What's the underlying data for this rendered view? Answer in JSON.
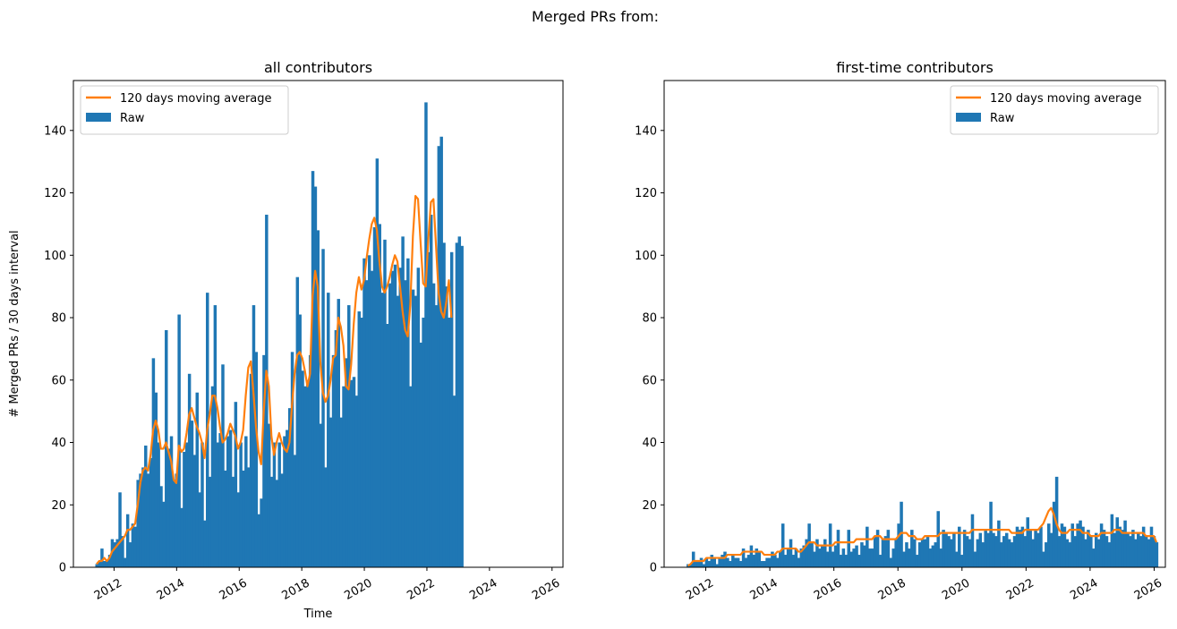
{
  "figure": {
    "title": "Merged PRs from:"
  },
  "colors": {
    "raw": "#1f77b4",
    "avg": "#ff7f0e"
  },
  "chart_data": [
    {
      "type": "bar",
      "title": "all contributors",
      "xlabel": "Time",
      "ylabel": "# Merged PRs / 30 days interval",
      "ylim": [
        0,
        156
      ],
      "xlim": [
        2010.7,
        2026.35
      ],
      "x_ticks": [
        2012,
        2014,
        2016,
        2018,
        2020,
        2022,
        2024,
        2026
      ],
      "x_tick_labels": [
        "2012",
        "2014",
        "2016",
        "2018",
        "2020",
        "2022",
        "2024",
        "2026"
      ],
      "y_ticks": [
        0,
        20,
        40,
        60,
        80,
        100,
        120,
        140
      ],
      "y_tick_labels": [
        "0",
        "20",
        "40",
        "60",
        "80",
        "100",
        "120",
        "140"
      ],
      "legend": {
        "position": "top-left",
        "entries": [
          "120 days moving average",
          "Raw"
        ]
      },
      "bar_width_years": 0.082,
      "series": [
        {
          "name": "Raw",
          "x_start": 2011.4,
          "x_step": 0.0822,
          "values": [
            1,
            2,
            6,
            2,
            2,
            4,
            9,
            8,
            9,
            24,
            10,
            3,
            17,
            8,
            14,
            13,
            28,
            30,
            32,
            39,
            30,
            35,
            67,
            56,
            40,
            26,
            21,
            76,
            38,
            42,
            28,
            30,
            81,
            19,
            37,
            40,
            62,
            47,
            36,
            56,
            24,
            40,
            15,
            88,
            29,
            58,
            84,
            40,
            43,
            65,
            31,
            42,
            44,
            29,
            53,
            24,
            40,
            31,
            42,
            32,
            62,
            84,
            69,
            17,
            22,
            68,
            113,
            46,
            29,
            40,
            28,
            40,
            30,
            42,
            44,
            51,
            69,
            36,
            93,
            81,
            63,
            58,
            60,
            68,
            127,
            122,
            108,
            46,
            102,
            32,
            88,
            48,
            68,
            76,
            86,
            48,
            58,
            67,
            84,
            60,
            61,
            55,
            82,
            80,
            99,
            92,
            100,
            95,
            109,
            131,
            110,
            88,
            105,
            78,
            91,
            95,
            97,
            87,
            96,
            106,
            92,
            99,
            58,
            89,
            87,
            96,
            72,
            80,
            149,
            101,
            113,
            91,
            84,
            135,
            138,
            104,
            90,
            80,
            101,
            55,
            104,
            106,
            103
          ],
          "bar_label": "Raw"
        },
        {
          "name": "120 days moving average",
          "x_start": 2011.4,
          "x_step": 0.0822,
          "values": [
            1,
            2,
            2,
            3,
            2,
            3,
            5,
            6,
            7,
            8,
            9,
            10,
            12,
            12,
            13,
            14,
            20,
            27,
            31,
            32,
            31,
            36,
            44,
            47,
            44,
            38,
            38,
            40,
            37,
            34,
            28,
            27,
            39,
            37,
            38,
            43,
            49,
            51,
            48,
            45,
            43,
            40,
            35,
            44,
            49,
            55,
            55,
            51,
            45,
            40,
            41,
            43,
            46,
            44,
            42,
            38,
            40,
            44,
            55,
            64,
            66,
            56,
            45,
            37,
            33,
            50,
            63,
            58,
            42,
            36,
            40,
            43,
            40,
            38,
            37,
            40,
            52,
            62,
            68,
            69,
            67,
            63,
            58,
            62,
            87,
            95,
            90,
            66,
            56,
            53,
            55,
            60,
            67,
            68,
            80,
            77,
            71,
            58,
            57,
            65,
            78,
            88,
            93,
            89,
            92,
            99,
            105,
            110,
            112,
            108,
            98,
            90,
            88,
            90,
            93,
            97,
            100,
            98,
            90,
            82,
            76,
            74,
            84,
            106,
            119,
            118,
            104,
            91,
            90,
            105,
            117,
            118,
            103,
            88,
            82,
            80,
            85,
            92,
            80
          ]
        }
      ]
    },
    {
      "type": "bar",
      "title": "first-time contributors",
      "xlabel": "",
      "ylabel": "",
      "ylim": [
        0,
        156
      ],
      "xlim": [
        2010.7,
        2026.35
      ],
      "x_ticks": [
        2012,
        2014,
        2016,
        2018,
        2020,
        2022,
        2024,
        2026
      ],
      "x_tick_labels": [
        "2012",
        "2014",
        "2016",
        "2018",
        "2020",
        "2022",
        "2024",
        "2026"
      ],
      "y_ticks": [
        0,
        20,
        40,
        60,
        80,
        100,
        120,
        140
      ],
      "y_tick_labels": [
        "0",
        "20",
        "40",
        "60",
        "80",
        "100",
        "120",
        "140"
      ],
      "legend": {
        "position": "top-right",
        "entries": [
          "120 days moving average",
          "Raw"
        ]
      },
      "bar_width_years": 0.082,
      "series": [
        {
          "name": "Raw",
          "x_start": 2011.4,
          "x_step": 0.0822,
          "values": [
            1,
            1,
            5,
            2,
            2,
            3,
            1,
            3,
            2,
            4,
            3,
            1,
            3,
            4,
            5,
            3,
            2,
            4,
            3,
            3,
            2,
            6,
            3,
            4,
            7,
            4,
            6,
            5,
            2,
            2,
            3,
            3,
            5,
            4,
            3,
            5,
            14,
            4,
            6,
            9,
            4,
            6,
            3,
            6,
            7,
            9,
            14,
            8,
            5,
            9,
            6,
            7,
            9,
            5,
            14,
            5,
            7,
            12,
            4,
            6,
            4,
            12,
            5,
            6,
            7,
            4,
            8,
            7,
            13,
            6,
            6,
            10,
            12,
            4,
            9,
            10,
            12,
            3,
            6,
            9,
            14,
            21,
            5,
            8,
            6,
            12,
            9,
            4,
            8,
            9,
            9,
            10,
            6,
            7,
            8,
            18,
            6,
            12,
            11,
            10,
            9,
            11,
            5,
            13,
            4,
            12,
            10,
            9,
            17,
            5,
            9,
            11,
            8,
            12,
            11,
            21,
            11,
            10,
            15,
            8,
            10,
            11,
            9,
            8,
            10,
            13,
            12,
            13,
            10,
            16,
            12,
            9,
            12,
            11,
            13,
            5,
            8,
            14,
            11,
            21,
            29,
            10,
            14,
            13,
            9,
            8,
            14,
            10,
            14,
            15,
            13,
            9,
            12,
            10,
            6,
            11,
            9,
            14,
            12,
            10,
            8,
            17,
            11,
            16,
            13,
            12,
            15,
            11,
            10,
            12,
            9,
            11,
            10,
            13,
            10,
            9,
            13,
            10,
            8
          ]
        },
        {
          "name": "120 days moving average",
          "x_start": 2011.4,
          "x_step": 0.0822,
          "values": [
            0.5,
            1,
            2,
            2,
            2,
            2,
            2,
            3,
            3,
            3,
            3,
            3,
            3,
            3,
            3,
            4,
            4,
            4,
            4,
            4,
            4,
            5,
            5,
            5,
            5,
            5,
            5,
            5,
            5,
            4,
            4,
            4,
            4,
            4,
            5,
            5,
            6,
            6,
            6,
            6,
            6,
            6,
            5,
            5,
            6,
            7,
            8,
            8,
            8,
            7,
            7,
            7,
            7,
            7,
            7,
            7,
            8,
            8,
            8,
            8,
            8,
            8,
            8,
            8,
            9,
            9,
            9,
            9,
            9,
            9,
            9,
            10,
            10,
            10,
            9,
            9,
            9,
            9,
            9,
            9,
            10,
            11,
            11,
            11,
            10,
            10,
            10,
            9,
            9,
            9,
            10,
            10,
            10,
            10,
            10,
            10,
            11,
            11,
            11,
            11,
            11,
            11,
            11,
            11,
            11,
            11,
            11,
            11,
            12,
            12,
            12,
            12,
            12,
            12,
            12,
            12,
            12,
            12,
            12,
            12,
            12,
            12,
            12,
            11,
            11,
            11,
            11,
            11,
            12,
            12,
            12,
            12,
            12,
            12,
            13,
            14,
            16,
            18,
            19,
            17,
            14,
            12,
            11,
            11,
            11,
            12,
            12,
            12,
            12,
            12,
            11,
            11,
            11,
            10,
            10,
            10,
            10,
            11,
            11,
            11,
            11,
            11,
            12,
            12,
            12,
            11,
            11,
            11,
            11,
            11,
            11,
            11,
            11,
            11,
            10,
            10,
            10,
            10,
            8
          ]
        }
      ]
    }
  ]
}
